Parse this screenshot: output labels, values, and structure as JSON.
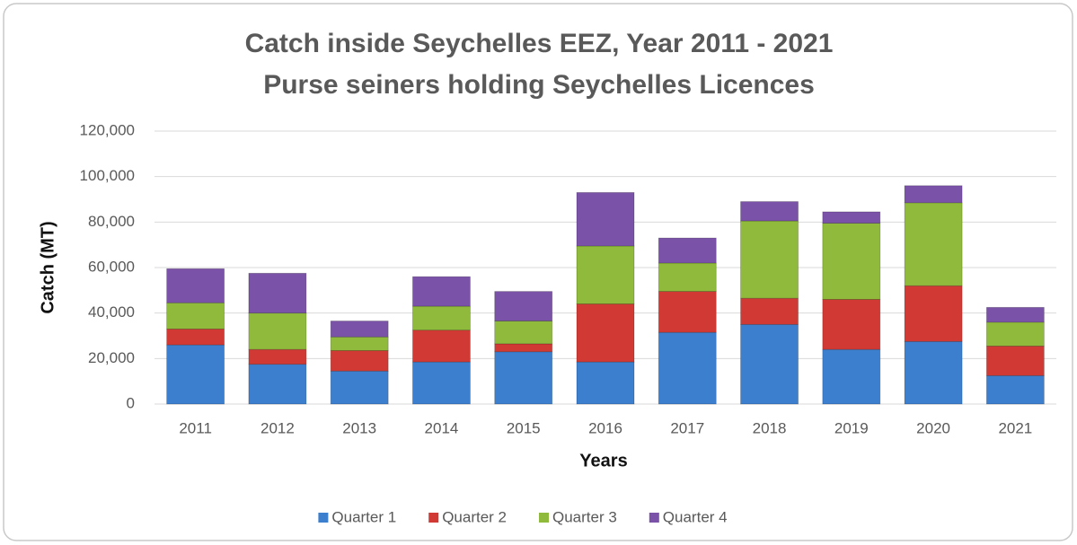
{
  "chart_data": {
    "type": "stacked_bar",
    "title": "Catch inside Seychelles EEZ, Year 2011 - 2021",
    "subtitle": "Purse seiners holding Seychelles Licences",
    "x_label": "Years",
    "y_label": "Catch (MT)",
    "categories": [
      "2011",
      "2012",
      "2013",
      "2014",
      "2015",
      "2016",
      "2017",
      "2018",
      "2019",
      "2020",
      "2021"
    ],
    "series": [
      {
        "name": "Quarter 1",
        "color": "#3d7fcf",
        "values": [
          26000,
          17500,
          14500,
          18500,
          23000,
          18500,
          31500,
          35000,
          24000,
          27500,
          12500
        ]
      },
      {
        "name": "Quarter 2",
        "color": "#d13a34",
        "values": [
          7000,
          6500,
          9000,
          14000,
          3500,
          25500,
          18000,
          11500,
          22000,
          24500,
          13000
        ]
      },
      {
        "name": "Quarter 3",
        "color": "#8fba3c",
        "values": [
          11500,
          16000,
          6000,
          10500,
          10000,
          25500,
          12500,
          34000,
          33500,
          36500,
          10500
        ]
      },
      {
        "name": "Quarter 4",
        "color": "#7a52a8",
        "values": [
          15000,
          17500,
          7000,
          13000,
          13000,
          23500,
          11000,
          8500,
          5000,
          7500,
          6500
        ]
      }
    ],
    "ylim": [
      0,
      120000
    ],
    "yticks": [
      0,
      {
        "value": 20000,
        "label": "20,000"
      },
      {
        "value": 40000,
        "label": "40,000"
      },
      {
        "value": 60000,
        "label": "60,000"
      },
      {
        "value": 80000,
        "label": "80,000"
      },
      {
        "value": 100000,
        "label": "100,000"
      },
      {
        "value": 120000,
        "label": "120,000"
      }
    ],
    "grid": true,
    "legend": "bottom"
  }
}
